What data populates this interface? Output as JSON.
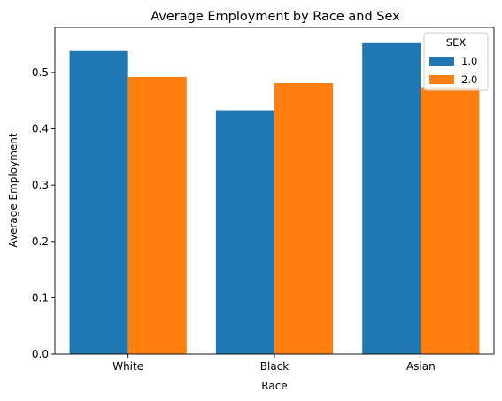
{
  "chart_data": {
    "type": "bar",
    "title": "Average Employment by Race and Sex",
    "xlabel": "Race",
    "ylabel": "Average Employment",
    "categories": [
      "White",
      "Black",
      "Asian"
    ],
    "series": [
      {
        "name": "1.0",
        "color": "#1f77b4",
        "values": [
          0.538,
          0.433,
          0.552
        ]
      },
      {
        "name": "2.0",
        "color": "#ff7f0e",
        "values": [
          0.492,
          0.481,
          0.474
        ]
      }
    ],
    "ylim": [
      0,
      0.58
    ],
    "yticks": [
      "0.0",
      "0.1",
      "0.2",
      "0.3",
      "0.4",
      "0.5"
    ],
    "grid": false,
    "legend": {
      "title": "SEX",
      "placement": "top-right"
    }
  }
}
